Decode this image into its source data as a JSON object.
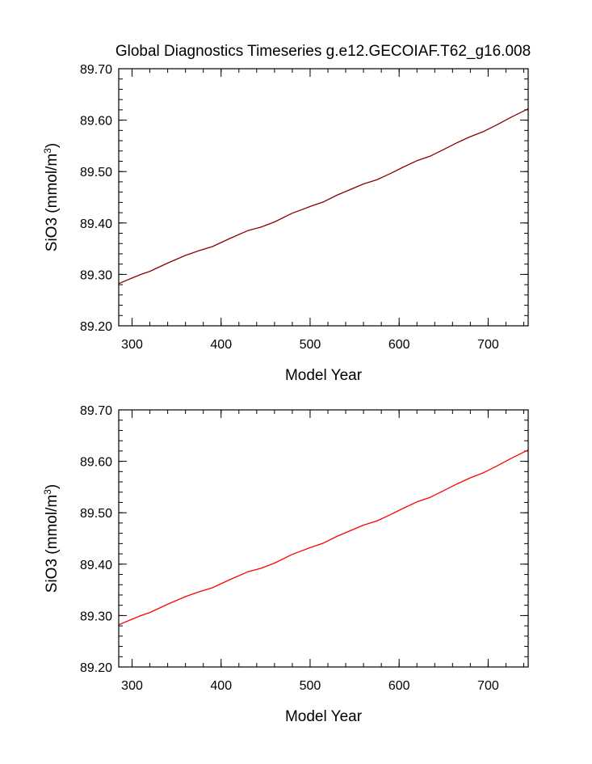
{
  "page_title": "Global Diagnostics Timeseries g.e12.GECOIAF.T62_g16.008",
  "chart_data": [
    {
      "type": "line",
      "title": "Global Diagnostics Timeseries g.e12.GECOIAF.T62_g16.008",
      "xlabel": "Model Year",
      "ylabel": "SiO3 (mmol/m",
      "ylabel_sup": "3",
      "ylabel_close": ")",
      "xlim": [
        285,
        745
      ],
      "ylim": [
        89.2,
        89.7
      ],
      "xticks": [
        300,
        400,
        500,
        600,
        700
      ],
      "xtick_labels": [
        "300",
        "400",
        "500",
        "600",
        "700"
      ],
      "yticks": [
        89.2,
        89.3,
        89.4,
        89.5,
        89.6,
        89.7
      ],
      "ytick_labels": [
        "89.20",
        "89.30",
        "89.40",
        "89.50",
        "89.60",
        "89.70"
      ],
      "grid": false,
      "series": [
        {
          "color": "#8b0000",
          "x": [
            285,
            300,
            310,
            320,
            340,
            360,
            375,
            390,
            410,
            430,
            445,
            460,
            480,
            500,
            515,
            530,
            545,
            560,
            575,
            590,
            605,
            620,
            635,
            650,
            665,
            680,
            695,
            710,
            725,
            745
          ],
          "y": [
            89.282,
            89.293,
            89.3,
            89.306,
            89.322,
            89.337,
            89.346,
            89.354,
            89.37,
            89.385,
            89.392,
            89.402,
            89.419,
            89.432,
            89.441,
            89.454,
            89.465,
            89.476,
            89.484,
            89.496,
            89.509,
            89.521,
            89.53,
            89.543,
            89.556,
            89.568,
            89.578,
            89.591,
            89.605,
            89.622
          ]
        }
      ]
    },
    {
      "type": "line",
      "title": "",
      "xlabel": "Model Year",
      "ylabel": "SiO3 (mmol/m",
      "ylabel_sup": "3",
      "ylabel_close": ")",
      "xlim": [
        285,
        745
      ],
      "ylim": [
        89.2,
        89.7
      ],
      "xticks": [
        300,
        400,
        500,
        600,
        700
      ],
      "xtick_labels": [
        "300",
        "400",
        "500",
        "600",
        "700"
      ],
      "yticks": [
        89.2,
        89.3,
        89.4,
        89.5,
        89.6,
        89.7
      ],
      "ytick_labels": [
        "89.20",
        "89.30",
        "89.40",
        "89.50",
        "89.60",
        "89.70"
      ],
      "grid": false,
      "series": [
        {
          "color": "#ff0000",
          "x": [
            285,
            300,
            310,
            320,
            340,
            360,
            375,
            390,
            410,
            430,
            445,
            460,
            480,
            500,
            515,
            530,
            545,
            560,
            575,
            590,
            605,
            620,
            635,
            650,
            665,
            680,
            695,
            710,
            725,
            745
          ],
          "y": [
            89.282,
            89.293,
            89.3,
            89.306,
            89.322,
            89.337,
            89.346,
            89.354,
            89.37,
            89.385,
            89.392,
            89.402,
            89.419,
            89.432,
            89.441,
            89.454,
            89.465,
            89.476,
            89.484,
            89.496,
            89.509,
            89.521,
            89.53,
            89.543,
            89.556,
            89.568,
            89.578,
            89.591,
            89.605,
            89.622
          ]
        }
      ]
    }
  ]
}
